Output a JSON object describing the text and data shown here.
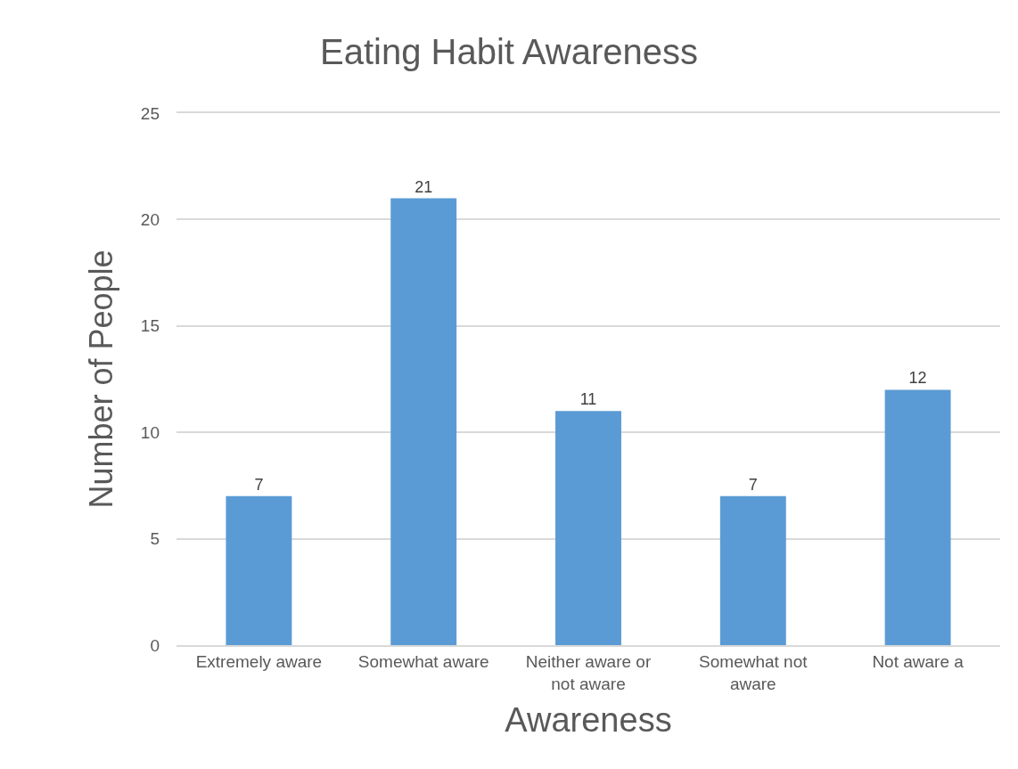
{
  "chart_data": {
    "type": "bar",
    "title": "Eating Habit Awareness",
    "xlabel": "Awareness",
    "ylabel": "Number of People",
    "categories": [
      "Extremely aware",
      "Somewhat aware",
      "Neither aware or not aware",
      "Somewhat not aware",
      "Not aware a"
    ],
    "values": [
      7,
      21,
      11,
      7,
      12
    ],
    "color": "#5b9bd5",
    "ylim": [
      0,
      25
    ],
    "yticks": [
      0,
      5,
      10,
      15,
      20,
      25
    ],
    "grid": "y",
    "data_labels": true
  }
}
